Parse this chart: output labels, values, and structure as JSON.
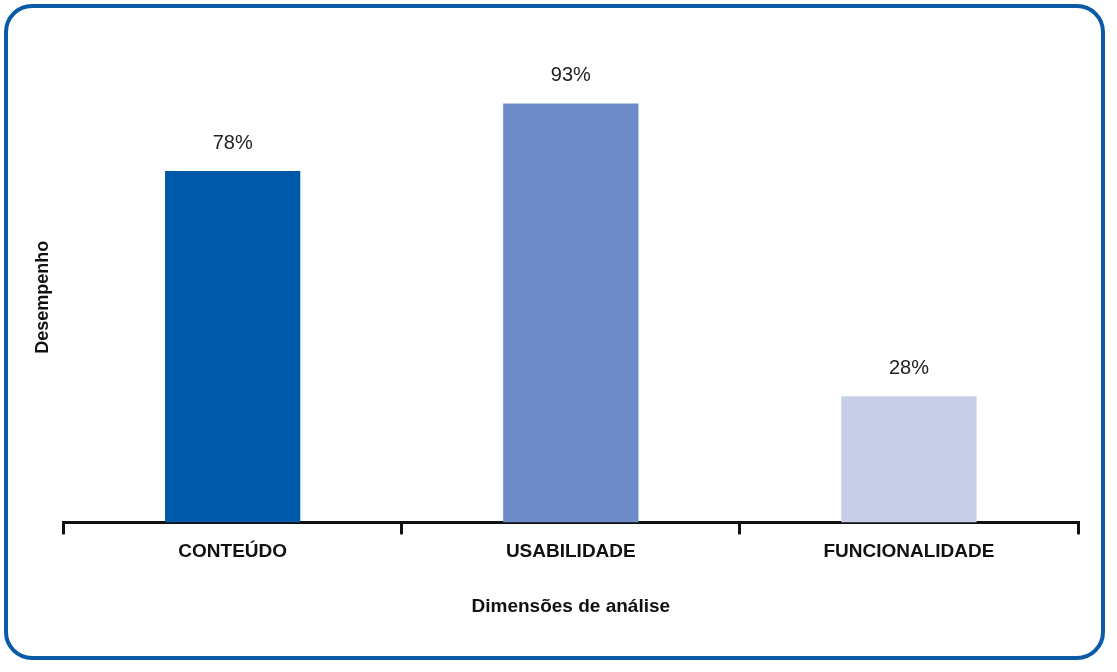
{
  "chart_data": {
    "type": "bar",
    "xlabel": "Dimensões de análise",
    "ylabel": "Desempenho",
    "categories": [
      "CONTEÚDO",
      "USABILIDADE",
      "FUNCIONALIDADE"
    ],
    "values": [
      78,
      93,
      28
    ],
    "colors": [
      "#0059a8",
      "#6d8bc6",
      "#c7cfe8"
    ],
    "value_labels": [
      "78%",
      "93%",
      "28%"
    ],
    "grid": false,
    "legend": false,
    "tick_labels": "x"
  }
}
